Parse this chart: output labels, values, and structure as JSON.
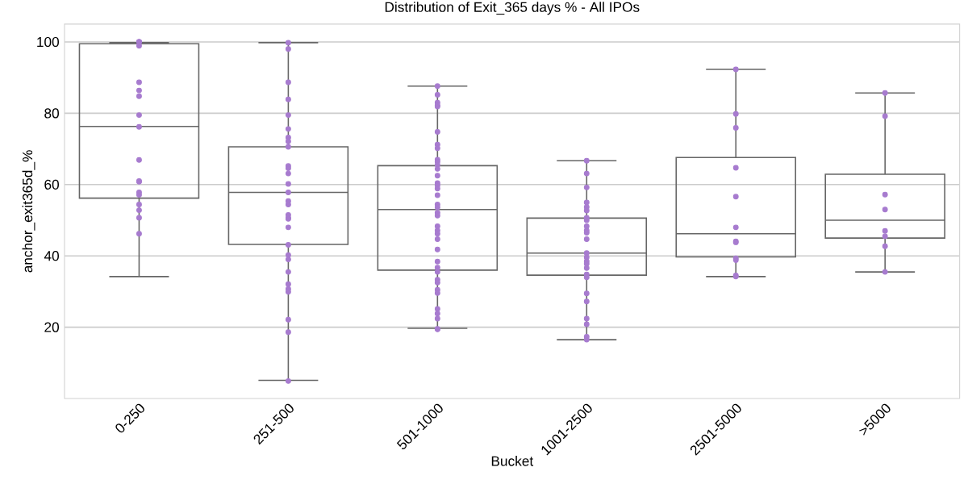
{
  "chart_data": {
    "type": "box",
    "title": "Distribution of Exit_365 days % - All IPOs",
    "xlabel": "Bucket",
    "ylabel": "anchor_exit365d_%",
    "categories": [
      "0-250",
      "251-500",
      "501-1000",
      "1001-2500",
      "2501-5000",
      ">5000"
    ],
    "boxes": [
      {
        "low": 34.2,
        "q1": 56.2,
        "median": 76.3,
        "q3": 99.5,
        "high": 99.8
      },
      {
        "low": 5.1,
        "q1": 43.2,
        "median": 57.8,
        "q3": 70.6,
        "high": 99.8
      },
      {
        "low": 19.7,
        "q1": 36.0,
        "median": 53.0,
        "q3": 65.3,
        "high": 87.6
      },
      {
        "low": 16.5,
        "q1": 34.6,
        "median": 40.8,
        "q3": 50.6,
        "high": 66.7
      },
      {
        "low": 34.2,
        "q1": 39.7,
        "median": 46.2,
        "q3": 67.6,
        "high": 92.3
      },
      {
        "low": 35.5,
        "q1": 45.0,
        "median": 50.0,
        "q3": 62.9,
        "high": 85.7
      }
    ],
    "series": [
      {
        "type": "scatter",
        "color": "#a77bcf",
        "x": [
          "0-250",
          "0-250",
          "0-250",
          "0-250",
          "0-250",
          "0-250",
          "0-250",
          "0-250",
          "0-250",
          "0-250",
          "0-250",
          "0-250",
          "0-250",
          "0-250",
          "0-250",
          "0-250",
          "0-250",
          "0-250",
          "251-500",
          "251-500",
          "251-500",
          "251-500",
          "251-500",
          "251-500",
          "251-500",
          "251-500",
          "251-500",
          "251-500",
          "251-500",
          "251-500",
          "251-500",
          "251-500",
          "251-500",
          "251-500",
          "251-500",
          "251-500",
          "251-500",
          "251-500",
          "251-500",
          "251-500",
          "251-500",
          "251-500",
          "251-500",
          "251-500",
          "251-500",
          "251-500",
          "251-500",
          "251-500",
          "501-1000",
          "501-1000",
          "501-1000",
          "501-1000",
          "501-1000",
          "501-1000",
          "501-1000",
          "501-1000",
          "501-1000",
          "501-1000",
          "501-1000",
          "501-1000",
          "501-1000",
          "501-1000",
          "501-1000",
          "501-1000",
          "501-1000",
          "501-1000",
          "501-1000",
          "501-1000",
          "501-1000",
          "501-1000",
          "501-1000",
          "501-1000",
          "501-1000",
          "501-1000",
          "501-1000",
          "501-1000",
          "501-1000",
          "501-1000",
          "501-1000",
          "501-1000",
          "501-1000",
          "501-1000",
          "501-1000",
          "501-1000",
          "501-1000",
          "501-1000",
          "1001-2500",
          "1001-2500",
          "1001-2500",
          "1001-2500",
          "1001-2500",
          "1001-2500",
          "1001-2500",
          "1001-2500",
          "1001-2500",
          "1001-2500",
          "1001-2500",
          "1001-2500",
          "1001-2500",
          "1001-2500",
          "1001-2500",
          "1001-2500",
          "1001-2500",
          "1001-2500",
          "1001-2500",
          "1001-2500",
          "1001-2500",
          "1001-2500",
          "1001-2500",
          "1001-2500",
          "1001-2500",
          "2501-5000",
          "2501-5000",
          "2501-5000",
          "2501-5000",
          "2501-5000",
          "2501-5000",
          "2501-5000",
          "2501-5000",
          "2501-5000",
          "2501-5000",
          "2501-5000",
          "2501-5000",
          ">5000",
          ">5000",
          ">5000",
          ">5000",
          ">5000",
          ">5000",
          ">5000",
          ">5000"
        ],
        "values": [
          100,
          100,
          100,
          98.9,
          88.7,
          86.4,
          84.8,
          79.5,
          76.2,
          66.9,
          61.0,
          60.8,
          57.8,
          57.1,
          54.4,
          52.8,
          50.7,
          46.2,
          99.8,
          98,
          88.7,
          83.9,
          79.5,
          75.6,
          73.2,
          72.1,
          70.6,
          65.2,
          64.6,
          63.1,
          60.2,
          57.8,
          55.4,
          54.4,
          51.5,
          50.7,
          50.4,
          48.0,
          43.1,
          40.2,
          39.0,
          32.1,
          30.7,
          29.9,
          22.1,
          18.6,
          4.9,
          35.5,
          87.6,
          85.2,
          83.0,
          82.2,
          81.9,
          74.8,
          71.2,
          70.2,
          67.0,
          66.4,
          65.5,
          64.4,
          62.5,
          60.4,
          59.8,
          58.9,
          57.0,
          54.4,
          53.6,
          52.1,
          51.3,
          48.3,
          47.1,
          46.2,
          44.7,
          41.8,
          38.4,
          36.7,
          35.5,
          33.3,
          32.5,
          30.5,
          29.6,
          25.1,
          23.8,
          22.4,
          19.5,
          19.4,
          66.7,
          63.1,
          59.2,
          55.0,
          53.7,
          52.7,
          50.7,
          50.0,
          48.3,
          47.1,
          46.5,
          44.7,
          40.8,
          39.6,
          38.5,
          37.8,
          36.6,
          34.8,
          34.0,
          29.5,
          27.2,
          22.4,
          20.8,
          17.3,
          16.5,
          92.3,
          79.8,
          75.9,
          64.7,
          56.6,
          48.0,
          44.1,
          43.8,
          39.3,
          38.8,
          34.5,
          34.2,
          85.7,
          79.2,
          57.2,
          53.0,
          47.0,
          45.5,
          42.7,
          35.5
        ]
      }
    ],
    "ylim": [
      0,
      105
    ],
    "yticks": [
      20,
      40,
      60,
      80,
      100
    ],
    "grid": "y"
  }
}
